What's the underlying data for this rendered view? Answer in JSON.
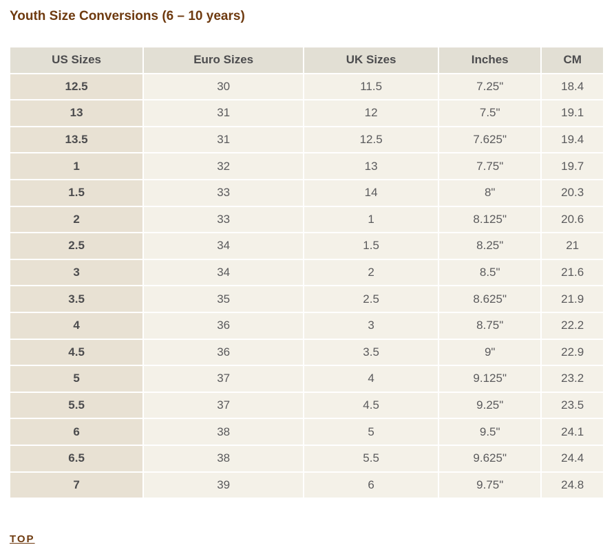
{
  "page": {
    "title": "Youth Size Conversions (6 – 10 years)",
    "top_link": "TOP"
  },
  "colors": {
    "title_brown": "#6e3a0f",
    "header_bg": "#e2dfd4",
    "first_col_bg": "#e8e1d3",
    "cell_bg": "#f4f1e8",
    "cell_border": "#ffffff",
    "header_text": "#4c4c4e",
    "cell_text": "#5a5a5c"
  },
  "table": {
    "columns": [
      "US Sizes",
      "Euro Sizes",
      "UK Sizes",
      "Inches",
      "CM"
    ],
    "rows": [
      [
        "12.5",
        "30",
        "11.5",
        "7.25\"",
        "18.4"
      ],
      [
        "13",
        "31",
        "12",
        "7.5\"",
        "19.1"
      ],
      [
        "13.5",
        "31",
        "12.5",
        "7.625\"",
        "19.4"
      ],
      [
        "1",
        "32",
        "13",
        "7.75\"",
        "19.7"
      ],
      [
        "1.5",
        "33",
        "14",
        "8\"",
        "20.3"
      ],
      [
        "2",
        "33",
        "1",
        "8.125\"",
        "20.6"
      ],
      [
        "2.5",
        "34",
        "1.5",
        "8.25\"",
        "21"
      ],
      [
        "3",
        "34",
        "2",
        "8.5\"",
        "21.6"
      ],
      [
        "3.5",
        "35",
        "2.5",
        "8.625\"",
        "21.9"
      ],
      [
        "4",
        "36",
        "3",
        "8.75\"",
        "22.2"
      ],
      [
        "4.5",
        "36",
        "3.5",
        "9\"",
        "22.9"
      ],
      [
        "5",
        "37",
        "4",
        "9.125\"",
        "23.2"
      ],
      [
        "5.5",
        "37",
        "4.5",
        "9.25\"",
        "23.5"
      ],
      [
        "6",
        "38",
        "5",
        "9.5\"",
        "24.1"
      ],
      [
        "6.5",
        "38",
        "5.5",
        "9.625\"",
        "24.4"
      ],
      [
        "7",
        "39",
        "6",
        "9.75\"",
        "24.8"
      ]
    ]
  }
}
